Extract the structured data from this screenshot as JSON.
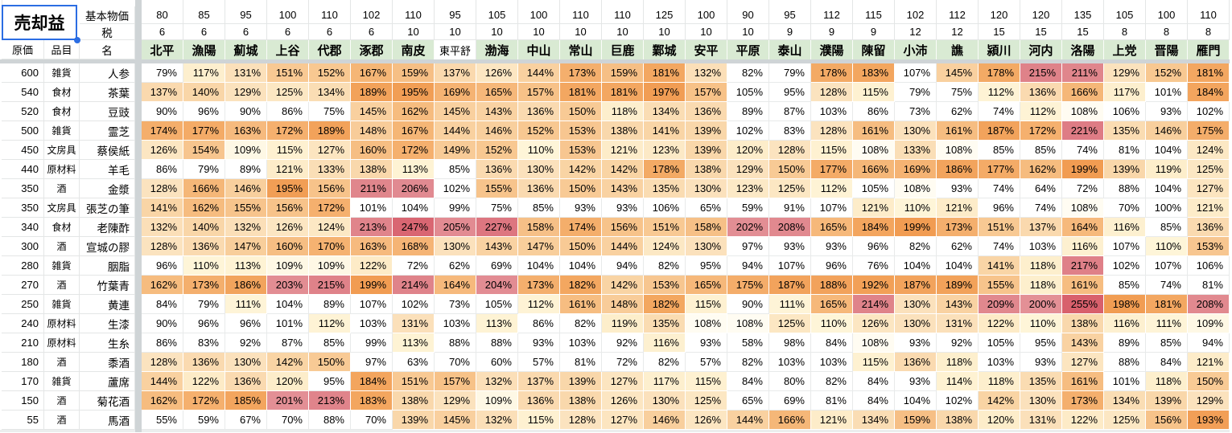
{
  "title_cell": {
    "text": "売却益"
  },
  "corner_headers": {
    "base_price": "基本物価",
    "tax": "税",
    "name": "名",
    "cost": "原価",
    "category": "品目"
  },
  "value_suffix": "%",
  "columns": [
    {
      "city": "北平",
      "base_price": 80,
      "tax": 6
    },
    {
      "city": "漁陽",
      "base_price": 85,
      "tax": 6
    },
    {
      "city": "薊城",
      "base_price": 95,
      "tax": 6
    },
    {
      "city": "上谷",
      "base_price": 100,
      "tax": 6
    },
    {
      "city": "代郡",
      "base_price": 110,
      "tax": 6
    },
    {
      "city": "涿郡",
      "base_price": 102,
      "tax": 6
    },
    {
      "city": "南皮",
      "base_price": 110,
      "tax": 10
    },
    {
      "city": "東平舒",
      "base_price": 95,
      "tax": 10,
      "plain_header": true
    },
    {
      "city": "渤海",
      "base_price": 105,
      "tax": 10
    },
    {
      "city": "中山",
      "base_price": 100,
      "tax": 10
    },
    {
      "city": "常山",
      "base_price": 110,
      "tax": 10
    },
    {
      "city": "巨鹿",
      "base_price": 110,
      "tax": 10
    },
    {
      "city": "鄴城",
      "base_price": 125,
      "tax": 10
    },
    {
      "city": "安平",
      "base_price": 100,
      "tax": 10
    },
    {
      "city": "平原",
      "base_price": 90,
      "tax": 10
    },
    {
      "city": "泰山",
      "base_price": 95,
      "tax": 9
    },
    {
      "city": "濮陽",
      "base_price": 112,
      "tax": 9
    },
    {
      "city": "陳留",
      "base_price": 115,
      "tax": 9
    },
    {
      "city": "小沛",
      "base_price": 102,
      "tax": 12
    },
    {
      "city": "譙",
      "base_price": 112,
      "tax": 12
    },
    {
      "city": "潁川",
      "base_price": 120,
      "tax": 15
    },
    {
      "city": "河内",
      "base_price": 120,
      "tax": 15
    },
    {
      "city": "洛陽",
      "base_price": 135,
      "tax": 15
    },
    {
      "city": "上党",
      "base_price": 105,
      "tax": 8
    },
    {
      "city": "晋陽",
      "base_price": 100,
      "tax": 8
    },
    {
      "city": "雁門",
      "base_price": 110,
      "tax": 8
    }
  ],
  "rows": [
    {
      "cost": 600,
      "category": "雑貨",
      "name": "人参",
      "values": [
        79,
        117,
        131,
        151,
        152,
        167,
        159,
        137,
        126,
        144,
        173,
        159,
        181,
        132,
        82,
        79,
        178,
        183,
        107,
        145,
        178,
        215,
        211,
        129,
        152,
        181
      ]
    },
    {
      "cost": 540,
      "category": "食材",
      "name": "茶葉",
      "values": [
        137,
        140,
        129,
        125,
        134,
        189,
        195,
        169,
        165,
        157,
        181,
        181,
        197,
        157,
        105,
        95,
        128,
        115,
        79,
        75,
        112,
        136,
        166,
        117,
        101,
        184
      ]
    },
    {
      "cost": 520,
      "category": "食材",
      "name": "豆豉",
      "values": [
        90,
        96,
        90,
        86,
        75,
        145,
        162,
        145,
        143,
        136,
        150,
        118,
        134,
        136,
        89,
        87,
        103,
        86,
        73,
        62,
        74,
        112,
        108,
        106,
        93,
        102
      ]
    },
    {
      "cost": 500,
      "category": "雑貨",
      "name": "霊芝",
      "values": [
        174,
        177,
        163,
        172,
        189,
        148,
        167,
        144,
        146,
        152,
        153,
        138,
        141,
        139,
        102,
        83,
        128,
        161,
        130,
        161,
        187,
        172,
        221,
        135,
        146,
        175
      ]
    },
    {
      "cost": 450,
      "category": "文房具",
      "name": "蔡侯紙",
      "values": [
        126,
        154,
        109,
        115,
        127,
        160,
        172,
        149,
        152,
        110,
        153,
        121,
        123,
        139,
        120,
        128,
        115,
        108,
        133,
        108,
        85,
        85,
        74,
        81,
        104,
        124
      ]
    },
    {
      "cost": 440,
      "category": "原材料",
      "name": "羊毛",
      "values": [
        86,
        79,
        89,
        121,
        133,
        138,
        113,
        85,
        136,
        130,
        142,
        142,
        178,
        138,
        129,
        150,
        177,
        166,
        169,
        186,
        177,
        162,
        199,
        139,
        119,
        125
      ]
    },
    {
      "cost": 350,
      "category": "酒",
      "name": "金漿",
      "values": [
        128,
        166,
        146,
        195,
        156,
        211,
        206,
        102,
        155,
        136,
        150,
        143,
        135,
        130,
        123,
        125,
        112,
        105,
        108,
        93,
        74,
        64,
        72,
        88,
        104,
        127
      ]
    },
    {
      "cost": 350,
      "category": "文房具",
      "name": "張芝の筆",
      "values": [
        141,
        162,
        155,
        156,
        172,
        101,
        104,
        99,
        75,
        85,
        93,
        93,
        106,
        65,
        59,
        91,
        107,
        121,
        110,
        121,
        96,
        74,
        108,
        70,
        100,
        121
      ]
    },
    {
      "cost": 340,
      "category": "食材",
      "name": "老陳酢",
      "values": [
        132,
        140,
        132,
        126,
        124,
        213,
        247,
        205,
        227,
        158,
        174,
        156,
        151,
        158,
        202,
        208,
        165,
        184,
        199,
        173,
        151,
        137,
        164,
        116,
        85,
        136
      ]
    },
    {
      "cost": 300,
      "category": "酒",
      "name": "宣城の膠",
      "values": [
        128,
        136,
        147,
        160,
        170,
        163,
        168,
        130,
        143,
        147,
        150,
        144,
        124,
        130,
        97,
        93,
        93,
        96,
        82,
        62,
        74,
        103,
        116,
        107,
        110,
        153
      ]
    },
    {
      "cost": 280,
      "category": "雑貨",
      "name": "胭脂",
      "values": [
        96,
        110,
        113,
        109,
        109,
        122,
        72,
        62,
        69,
        104,
        104,
        94,
        82,
        95,
        94,
        107,
        96,
        76,
        104,
        104,
        141,
        118,
        217,
        102,
        107,
        106
      ]
    },
    {
      "cost": 270,
      "category": "酒",
      "name": "竹葉青",
      "values": [
        162,
        173,
        186,
        203,
        215,
        199,
        214,
        164,
        204,
        173,
        182,
        142,
        153,
        165,
        175,
        187,
        188,
        192,
        187,
        189,
        155,
        118,
        161,
        85,
        74,
        81
      ]
    },
    {
      "cost": 250,
      "category": "雑貨",
      "name": "黄連",
      "values": [
        84,
        79,
        111,
        104,
        89,
        107,
        102,
        73,
        105,
        112,
        161,
        148,
        182,
        115,
        90,
        111,
        165,
        214,
        130,
        143,
        209,
        200,
        255,
        198,
        181,
        208
      ]
    },
    {
      "cost": 240,
      "category": "原材料",
      "name": "生漆",
      "values": [
        90,
        96,
        96,
        101,
        112,
        103,
        131,
        103,
        113,
        86,
        82,
        119,
        135,
        108,
        108,
        125,
        110,
        126,
        130,
        131,
        122,
        110,
        138,
        116,
        111,
        109
      ]
    },
    {
      "cost": 210,
      "category": "原材料",
      "name": "生糸",
      "values": [
        86,
        83,
        92,
        87,
        85,
        99,
        113,
        88,
        88,
        93,
        103,
        92,
        116,
        93,
        58,
        98,
        84,
        108,
        93,
        92,
        105,
        95,
        143,
        89,
        85,
        94
      ]
    },
    {
      "cost": 180,
      "category": "酒",
      "name": "黍酒",
      "values": [
        128,
        136,
        130,
        142,
        150,
        97,
        63,
        70,
        60,
        57,
        81,
        72,
        82,
        57,
        82,
        103,
        103,
        115,
        136,
        118,
        103,
        93,
        127,
        88,
        84,
        121
      ]
    },
    {
      "cost": 170,
      "category": "雑貨",
      "name": "蘆席",
      "values": [
        144,
        122,
        136,
        120,
        95,
        184,
        151,
        157,
        132,
        137,
        139,
        127,
        117,
        115,
        84,
        80,
        82,
        84,
        93,
        114,
        118,
        135,
        161,
        101,
        118,
        150
      ]
    },
    {
      "cost": 150,
      "category": "酒",
      "name": "菊花酒",
      "values": [
        162,
        172,
        185,
        201,
        213,
        183,
        138,
        129,
        109,
        136,
        138,
        126,
        130,
        125,
        65,
        69,
        81,
        84,
        104,
        102,
        142,
        130,
        173,
        134,
        139,
        129
      ]
    },
    {
      "cost": 55,
      "category": "酒",
      "name": "馬酒",
      "values": [
        55,
        59,
        67,
        70,
        88,
        70,
        139,
        145,
        132,
        115,
        128,
        127,
        146,
        126,
        144,
        166,
        121,
        134,
        159,
        138,
        120,
        131,
        122,
        125,
        156,
        193
      ]
    }
  ],
  "colors": {
    "header_green": "#D9EAD3",
    "selection_blue": "#2B6DE3",
    "gridline": "#E4E6E6",
    "spacer_gray": "#CFD4D6",
    "heat_scale_stops": [
      [
        107,
        "#FFFFFF"
      ],
      [
        110,
        "#FEF5D8"
      ],
      [
        120,
        "#FDEDCA"
      ],
      [
        130,
        "#FBE1BC"
      ],
      [
        140,
        "#F9D6A8"
      ],
      [
        150,
        "#F8CA95"
      ],
      [
        160,
        "#F6BE83"
      ],
      [
        170,
        "#F5B271"
      ],
      [
        180,
        "#F3A862"
      ],
      [
        190,
        "#F2A159"
      ],
      [
        199,
        "#F19C52"
      ],
      [
        200,
        "#E39096"
      ],
      [
        215,
        "#DF8289"
      ],
      [
        230,
        "#DC737E"
      ],
      [
        255,
        "#D8606C"
      ]
    ]
  }
}
